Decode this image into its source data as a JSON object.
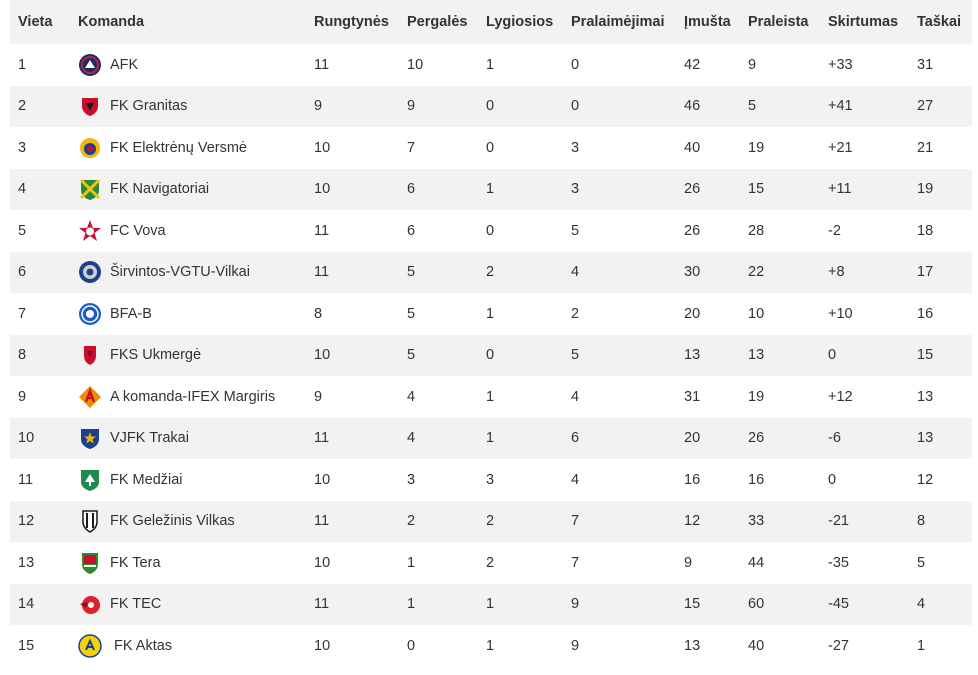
{
  "columns": [
    "Vieta",
    "Komanda",
    "Rungtynės",
    "Pergalės",
    "Lygiosios",
    "Pralaimėjimai",
    "Įmušta",
    "Praleista",
    "Skirtumas",
    "Taškai"
  ],
  "rows": [
    {
      "pos": "1",
      "team": "AFK",
      "logo": "afk-logo-icon",
      "logo_colors": [
        "#1b2a6b",
        "#c0242c"
      ],
      "played": "11",
      "won": "10",
      "draw": "1",
      "lost": "0",
      "gf": "42",
      "ga": "9",
      "diff": "+33",
      "pts": "31"
    },
    {
      "pos": "2",
      "team": "FK Granitas",
      "logo": "granitas-logo-icon",
      "logo_colors": [
        "#c8102e",
        "#1a1a1a"
      ],
      "played": "9",
      "won": "9",
      "draw": "0",
      "lost": "0",
      "gf": "46",
      "ga": "5",
      "diff": "+41",
      "pts": "27"
    },
    {
      "pos": "3",
      "team": "FK Elektrėnų Versmė",
      "logo": "versme-logo-icon",
      "logo_colors": [
        "#f2b705",
        "#1d3f8f"
      ],
      "played": "10",
      "won": "7",
      "draw": "0",
      "lost": "3",
      "gf": "40",
      "ga": "19",
      "diff": "+21",
      "pts": "21"
    },
    {
      "pos": "4",
      "team": "FK Navigatoriai",
      "logo": "navigatoriai-logo-icon",
      "logo_colors": [
        "#2e8b2e",
        "#f0c419"
      ],
      "played": "10",
      "won": "6",
      "draw": "1",
      "lost": "3",
      "gf": "26",
      "ga": "15",
      "diff": "+11",
      "pts": "19"
    },
    {
      "pos": "5",
      "team": "FC Vova",
      "logo": "vova-logo-icon",
      "logo_colors": [
        "#c8102e",
        "#ffffff"
      ],
      "played": "11",
      "won": "6",
      "draw": "0",
      "lost": "5",
      "gf": "26",
      "ga": "28",
      "diff": "-2",
      "pts": "18"
    },
    {
      "pos": "6",
      "team": "Širvintos-VGTU-Vilkai",
      "logo": "vilkai-logo-icon",
      "logo_colors": [
        "#1d3f8f",
        "#d0d0d0"
      ],
      "played": "11",
      "won": "5",
      "draw": "2",
      "lost": "4",
      "gf": "30",
      "ga": "22",
      "diff": "+8",
      "pts": "17"
    },
    {
      "pos": "7",
      "team": "BFA-B",
      "logo": "bfa-logo-icon",
      "logo_colors": [
        "#1e5bc6",
        "#ffffff"
      ],
      "played": "8",
      "won": "5",
      "draw": "1",
      "lost": "2",
      "gf": "20",
      "ga": "10",
      "diff": "+10",
      "pts": "16"
    },
    {
      "pos": "8",
      "team": "FKS Ukmergė",
      "logo": "ukmerge-logo-icon",
      "logo_colors": [
        "#c8102e",
        "#8a0c1f"
      ],
      "played": "10",
      "won": "5",
      "draw": "0",
      "lost": "5",
      "gf": "13",
      "ga": "13",
      "diff": "0",
      "pts": "15"
    },
    {
      "pos": "9",
      "team": "A komanda-IFEX Margiris",
      "logo": "margiris-logo-icon",
      "logo_colors": [
        "#f28c00",
        "#c8102e"
      ],
      "played": "9",
      "won": "4",
      "draw": "1",
      "lost": "4",
      "gf": "31",
      "ga": "19",
      "diff": "+12",
      "pts": "13"
    },
    {
      "pos": "10",
      "team": "VJFK Trakai",
      "logo": "trakai-logo-icon",
      "logo_colors": [
        "#1d3f8f",
        "#f2b705"
      ],
      "played": "11",
      "won": "4",
      "draw": "1",
      "lost": "6",
      "gf": "20",
      "ga": "26",
      "diff": "-6",
      "pts": "13"
    },
    {
      "pos": "11",
      "team": "FK Medžiai",
      "logo": "medziai-logo-icon",
      "logo_colors": [
        "#1f8a4c",
        "#ffffff"
      ],
      "played": "10",
      "won": "3",
      "draw": "3",
      "lost": "4",
      "gf": "16",
      "ga": "16",
      "diff": "0",
      "pts": "12"
    },
    {
      "pos": "12",
      "team": "FK Geležinis Vilkas",
      "logo": "vilkas-logo-icon",
      "logo_colors": [
        "#1a1a1a",
        "#ffffff"
      ],
      "played": "11",
      "won": "2",
      "draw": "2",
      "lost": "7",
      "gf": "12",
      "ga": "33",
      "diff": "-21",
      "pts": "8"
    },
    {
      "pos": "13",
      "team": "FK Tera",
      "logo": "tera-logo-icon",
      "logo_colors": [
        "#c8102e",
        "#2e8b2e"
      ],
      "played": "10",
      "won": "1",
      "draw": "2",
      "lost": "7",
      "gf": "9",
      "ga": "44",
      "diff": "-35",
      "pts": "5"
    },
    {
      "pos": "14",
      "team": "FK TEC",
      "logo": "tec-logo-icon",
      "logo_colors": [
        "#e0202a",
        "#8a0c1f"
      ],
      "played": "11",
      "won": "1",
      "draw": "1",
      "lost": "9",
      "gf": "15",
      "ga": "60",
      "diff": "-45",
      "pts": "4"
    },
    {
      "pos": "15",
      "team": " FK Aktas",
      "logo": "aktas-logo-icon",
      "logo_colors": [
        "#f2d20a",
        "#1d3f8f"
      ],
      "played": "10",
      "won": "0",
      "draw": "1",
      "lost": "9",
      "gf": "13",
      "ga": "40",
      "diff": "-27",
      "pts": "1"
    }
  ]
}
